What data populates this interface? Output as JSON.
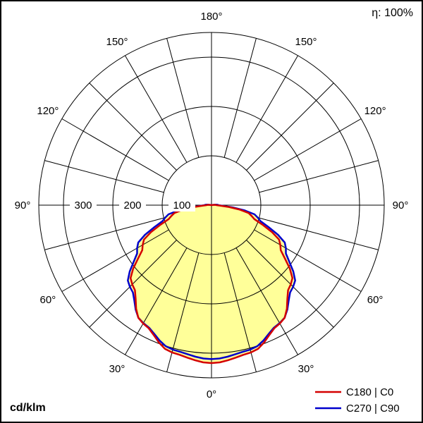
{
  "chart_data": {
    "type": "polar",
    "unit_label": "cd/klm",
    "efficiency_label": "η: 100%",
    "angle_labels_deg": [
      0,
      30,
      60,
      90,
      120,
      150,
      180
    ],
    "radial_ticks": [
      100,
      200,
      300
    ],
    "radial_max": 350,
    "gamma_deg": [
      0,
      15,
      30,
      45,
      60,
      75,
      90,
      105,
      120,
      135,
      150,
      165,
      180
    ],
    "series": [
      {
        "name": "C180 | C0",
        "color": "#d40000",
        "values": [
          320,
          309,
          277,
          227,
          161,
          84,
          10,
          0,
          0,
          0,
          0,
          0,
          0
        ]
      },
      {
        "name": "C270 | C90",
        "color": "#0000cc",
        "values": [
          312,
          303,
          276,
          234,
          174,
          97,
          14,
          0,
          0,
          0,
          0,
          0,
          0
        ]
      }
    ],
    "fill_color": "#ffff99",
    "grid_color": "#000000",
    "background_color": "#ffffff",
    "legend_position": "bottom-right"
  }
}
